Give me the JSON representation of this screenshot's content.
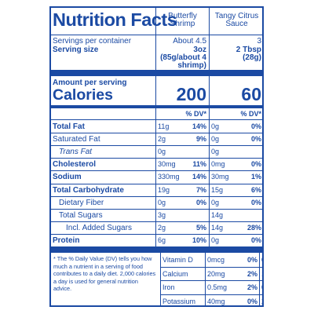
{
  "title": "Nutrition Facts",
  "columns": [
    {
      "name": "Butterfly Shrimp",
      "servings": "About 4.5",
      "serving_size": "3oz (85g/about 4 shrimp)",
      "calories": "200"
    },
    {
      "name": "Tangy Citrus Sauce",
      "servings": "3",
      "serving_size": "2 Tbsp (28g)",
      "calories": "60"
    }
  ],
  "servings_label": "Servings per container",
  "serving_size_label": "Serving size",
  "amount_label": "Amount per serving",
  "calories_label": "Calories",
  "dv_label": "% DV*",
  "nutrients": [
    {
      "label": "Total Fat",
      "bold": true,
      "indent": 0,
      "a_amt": "11g",
      "a_dv": "14%",
      "b_amt": "0g",
      "b_dv": "0%"
    },
    {
      "label": "Saturated Fat",
      "bold": false,
      "indent": 0,
      "a_amt": "2g",
      "a_dv": "9%",
      "b_amt": "0g",
      "b_dv": "0%"
    },
    {
      "label": "Trans Fat",
      "bold": false,
      "indent": 1,
      "italic_prefix": true,
      "a_amt": "0g",
      "a_dv": "",
      "b_amt": "0g",
      "b_dv": ""
    },
    {
      "label": "Cholesterol",
      "bold": true,
      "indent": 0,
      "a_amt": "30mg",
      "a_dv": "11%",
      "b_amt": "0mg",
      "b_dv": "0%"
    },
    {
      "label": "Sodium",
      "bold": true,
      "indent": 0,
      "a_amt": "330mg",
      "a_dv": "14%",
      "b_amt": "30mg",
      "b_dv": "1%"
    },
    {
      "label": "Total Carbohydrate",
      "bold": true,
      "indent": 0,
      "a_amt": "19g",
      "a_dv": "7%",
      "b_amt": "15g",
      "b_dv": "6%"
    },
    {
      "label": "Dietary Fiber",
      "bold": false,
      "indent": 1,
      "a_amt": "0g",
      "a_dv": "0%",
      "b_amt": "0g",
      "b_dv": "0%"
    },
    {
      "label": "Total Sugars",
      "bold": false,
      "indent": 1,
      "a_amt": "3g",
      "a_dv": "",
      "b_amt": "14g",
      "b_dv": ""
    },
    {
      "label": "Incl. Added Sugars",
      "bold": false,
      "indent": 2,
      "a_amt": "2g",
      "a_dv": "5%",
      "b_amt": "14g",
      "b_dv": "28%"
    },
    {
      "label": "Protein",
      "bold": true,
      "indent": 0,
      "a_amt": "6g",
      "a_dv": "10%",
      "b_amt": "0g",
      "b_dv": "0%"
    }
  ],
  "footnote": "* The % Daily Value (DV) tells you how much a nutrient in a serving of food contributes to a daily diet. 2,000 calories a day is used for general nutrition advice.",
  "vitamins": [
    {
      "label": "Vitamin D",
      "a_amt": "0mcg",
      "a_dv": "0%",
      "b_amt": "0mcg",
      "b_dv": "0%"
    },
    {
      "label": "Calcium",
      "a_amt": "20mg",
      "a_dv": "2%",
      "b_amt": "10mg",
      "b_dv": "0%"
    },
    {
      "label": "Iron",
      "a_amt": "0.5mg",
      "a_dv": "2%",
      "b_amt": "0.1mg",
      "b_dv": "0%"
    },
    {
      "label": "Potassium",
      "a_amt": "40mg",
      "a_dv": "0%",
      "b_amt": "20mg",
      "b_dv": "0%"
    }
  ],
  "colors": {
    "ink": "#1b4aa3",
    "background": "#ffffff"
  }
}
